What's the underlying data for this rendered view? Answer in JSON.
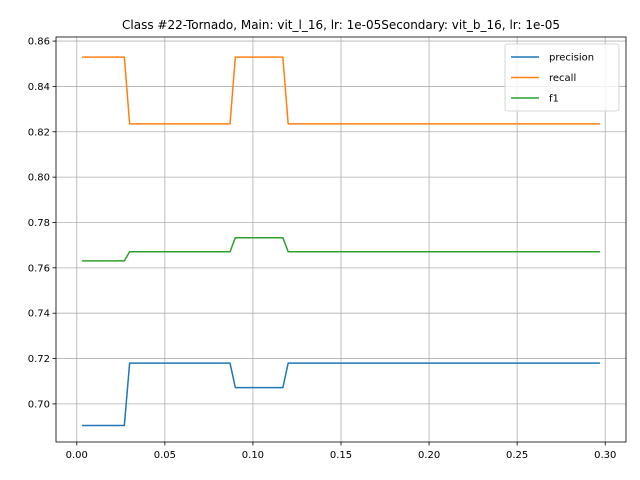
{
  "chart_data": {
    "type": "line",
    "title": "Class #22-Tornado, Main: vit_l_16, lr: 1e-05Secondary: vit_b_16, lr: 1e-05",
    "xlabel": "",
    "ylabel": "",
    "xlim": [
      -0.0118,
      0.3118
    ],
    "ylim": [
      0.6832,
      0.8618
    ],
    "xticks": [
      0.0,
      0.05,
      0.1,
      0.15,
      0.2,
      0.25,
      0.3
    ],
    "xtick_labels": [
      "0.00",
      "0.05",
      "0.10",
      "0.15",
      "0.20",
      "0.25",
      "0.30"
    ],
    "yticks": [
      0.7,
      0.72,
      0.74,
      0.76,
      0.78,
      0.8,
      0.82,
      0.84,
      0.86
    ],
    "ytick_labels": [
      "0.70",
      "0.72",
      "0.74",
      "0.76",
      "0.78",
      "0.80",
      "0.82",
      "0.84",
      "0.86"
    ],
    "grid": true,
    "legend_position": "top-right",
    "x": [
      0.003,
      0.027,
      0.03,
      0.087,
      0.09,
      0.117,
      0.12,
      0.297
    ],
    "series": [
      {
        "name": "precision",
        "color": "#1f77b4",
        "values": [
          0.6905,
          0.6905,
          0.718,
          0.718,
          0.7072,
          0.7072,
          0.718,
          0.718
        ]
      },
      {
        "name": "recall",
        "color": "#ff7f0e",
        "values": [
          0.8529,
          0.8529,
          0.8235,
          0.8235,
          0.8529,
          0.8529,
          0.8235,
          0.8235
        ]
      },
      {
        "name": "f1",
        "color": "#2ca02c",
        "values": [
          0.7631,
          0.7631,
          0.7671,
          0.7671,
          0.7733,
          0.7733,
          0.7671,
          0.7671
        ]
      }
    ]
  }
}
